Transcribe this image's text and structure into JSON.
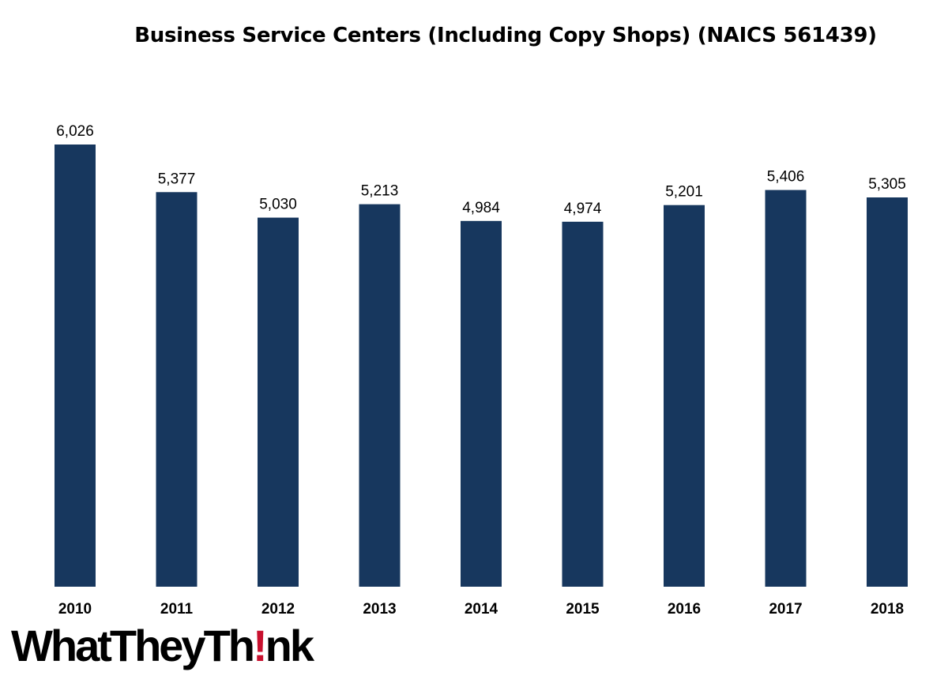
{
  "chart_data": {
    "type": "bar",
    "title": "Business Service  Centers (Including Copy Shops) (NAICS 561439)",
    "categories": [
      "2010",
      "2011",
      "2012",
      "2013",
      "2014",
      "2015",
      "2016",
      "2017",
      "2018"
    ],
    "values": [
      6026,
      5377,
      5030,
      5213,
      4984,
      4974,
      5201,
      5406,
      5305
    ],
    "value_labels": [
      "6,026",
      "5,377",
      "5,030",
      "5,213",
      "4,984",
      "4,974",
      "5,201",
      "5,406",
      "5,305"
    ],
    "xlabel": "",
    "ylabel": "",
    "ylim": [
      0,
      6026
    ],
    "grid": false,
    "legend": "none",
    "bar_color": "#17375e"
  },
  "branding": {
    "logo_text": "WhatTheyTh!nk",
    "logo_accent_color": "#c8102e"
  }
}
